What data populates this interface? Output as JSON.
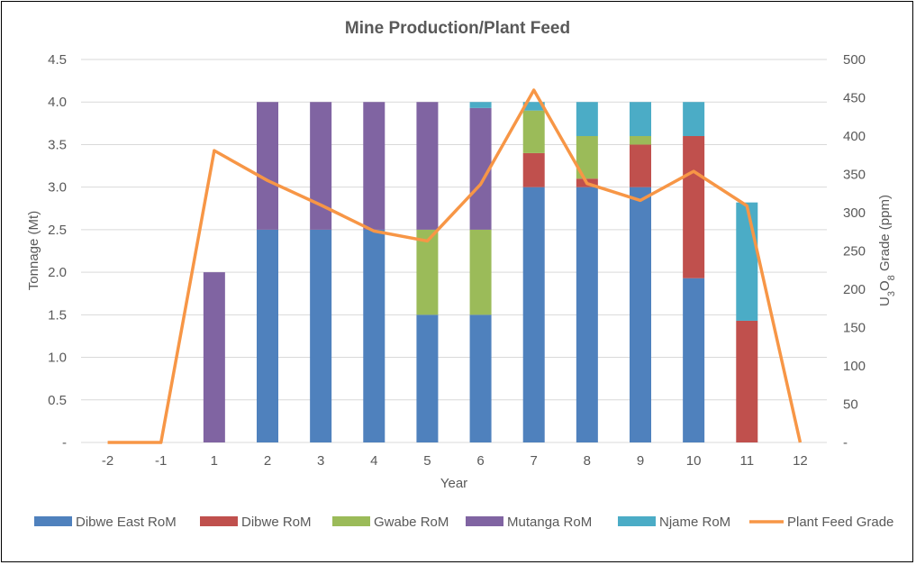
{
  "chart_data": {
    "type": "bar",
    "title": "Mine Production/Plant Feed",
    "xlabel": "Year",
    "ylabel": "Tonnage (Mt)",
    "y2label_parts": [
      "U",
      "3",
      "O",
      "8",
      " Grade (ppm)"
    ],
    "categories": [
      "-2",
      "-1",
      "1",
      "2",
      "3",
      "4",
      "5",
      "6",
      "7",
      "8",
      "9",
      "10",
      "11",
      "12"
    ],
    "ylim": [
      0,
      4.5
    ],
    "yticks": [
      "-",
      "0.5",
      "1.0",
      "1.5",
      "2.0",
      "2.5",
      "3.0",
      "3.5",
      "4.0",
      "4.5"
    ],
    "y2lim": [
      0,
      500
    ],
    "y2ticks": [
      "-",
      "50",
      "100",
      "150",
      "200",
      "250",
      "300",
      "350",
      "400",
      "450",
      "500"
    ],
    "grid": true,
    "legend_position": "bottom",
    "series": [
      {
        "name": "Dibwe East RoM",
        "color": "#4F81BD",
        "kind": "bar",
        "values": [
          0,
          0,
          0,
          2.5,
          2.5,
          2.5,
          1.5,
          1.5,
          3.0,
          3.0,
          3.0,
          1.93,
          0,
          0
        ]
      },
      {
        "name": "Dibwe RoM",
        "color": "#C0504D",
        "kind": "bar",
        "values": [
          0,
          0,
          0,
          0,
          0,
          0,
          0,
          0,
          0.4,
          0.1,
          0.5,
          1.67,
          1.43,
          0
        ]
      },
      {
        "name": "Gwabe RoM",
        "color": "#9BBB59",
        "kind": "bar",
        "values": [
          0,
          0,
          0,
          0,
          0,
          0,
          1.0,
          1.0,
          0.5,
          0.5,
          0.1,
          0,
          0,
          0
        ]
      },
      {
        "name": "Mutanga RoM",
        "color": "#8064A2",
        "kind": "bar",
        "values": [
          0,
          0,
          2.0,
          1.5,
          1.5,
          1.5,
          1.5,
          1.43,
          0,
          0,
          0,
          0,
          0,
          0
        ]
      },
      {
        "name": "Njame RoM",
        "color": "#4BACC6",
        "kind": "bar",
        "values": [
          0,
          0,
          0,
          0,
          0,
          0,
          0,
          0.07,
          0.1,
          0.4,
          0.4,
          0.4,
          1.39,
          0
        ]
      },
      {
        "name": "Plant Feed Grade",
        "color": "#F79646",
        "kind": "line",
        "axis": "right",
        "values": [
          0,
          0,
          381,
          342,
          310,
          276,
          263,
          337,
          460,
          338,
          316,
          354,
          309,
          0
        ]
      }
    ]
  }
}
